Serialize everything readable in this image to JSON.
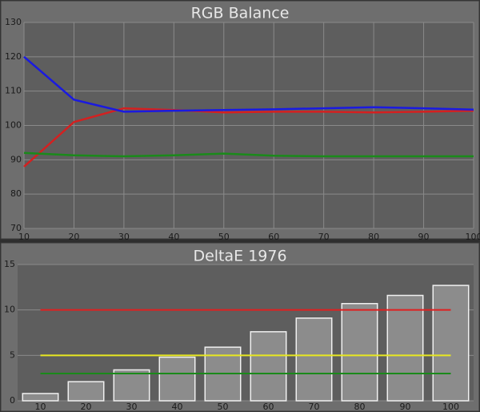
{
  "chart_data": [
    {
      "type": "line",
      "title": "RGB Balance",
      "x": [
        10,
        20,
        30,
        40,
        50,
        60,
        70,
        80,
        90,
        100
      ],
      "series": [
        {
          "color": "#d42020",
          "values": [
            88,
            101,
            105,
            104.5,
            103.8,
            104,
            104,
            103.8,
            104,
            104.3
          ]
        },
        {
          "color": "#1a8a1a",
          "values": [
            92,
            91.3,
            91,
            91.3,
            91.8,
            91.2,
            91,
            91,
            91,
            91
          ]
        },
        {
          "color": "#1a1ae0",
          "values": [
            120,
            107.5,
            104,
            104.3,
            104.5,
            104.7,
            105,
            105.3,
            105,
            104.6
          ]
        }
      ],
      "xlim": [
        10,
        100
      ],
      "xticks": [
        10,
        20,
        30,
        40,
        50,
        60,
        70,
        80,
        90,
        100
      ],
      "ylim": [
        70,
        130
      ],
      "yticks": [
        70,
        80,
        90,
        100,
        110,
        120,
        130
      ],
      "grid": true
    },
    {
      "type": "bar",
      "title": "DeltaE 1976",
      "categories": [
        "10",
        "20",
        "30",
        "40",
        "50",
        "60",
        "70",
        "80",
        "90",
        "100"
      ],
      "values": [
        0.8,
        2.1,
        3.4,
        4.8,
        5.9,
        7.6,
        9.1,
        10.7,
        11.6,
        12.7
      ],
      "color": "#8c8c8c",
      "reference_lines": [
        {
          "value": 10,
          "color": "#e02020"
        },
        {
          "value": 5,
          "color": "#e8e820"
        },
        {
          "value": 3,
          "color": "#1a8a1a"
        }
      ],
      "ylim": [
        0,
        15
      ],
      "yticks": [
        0,
        5,
        10,
        15
      ],
      "grid": true
    }
  ]
}
